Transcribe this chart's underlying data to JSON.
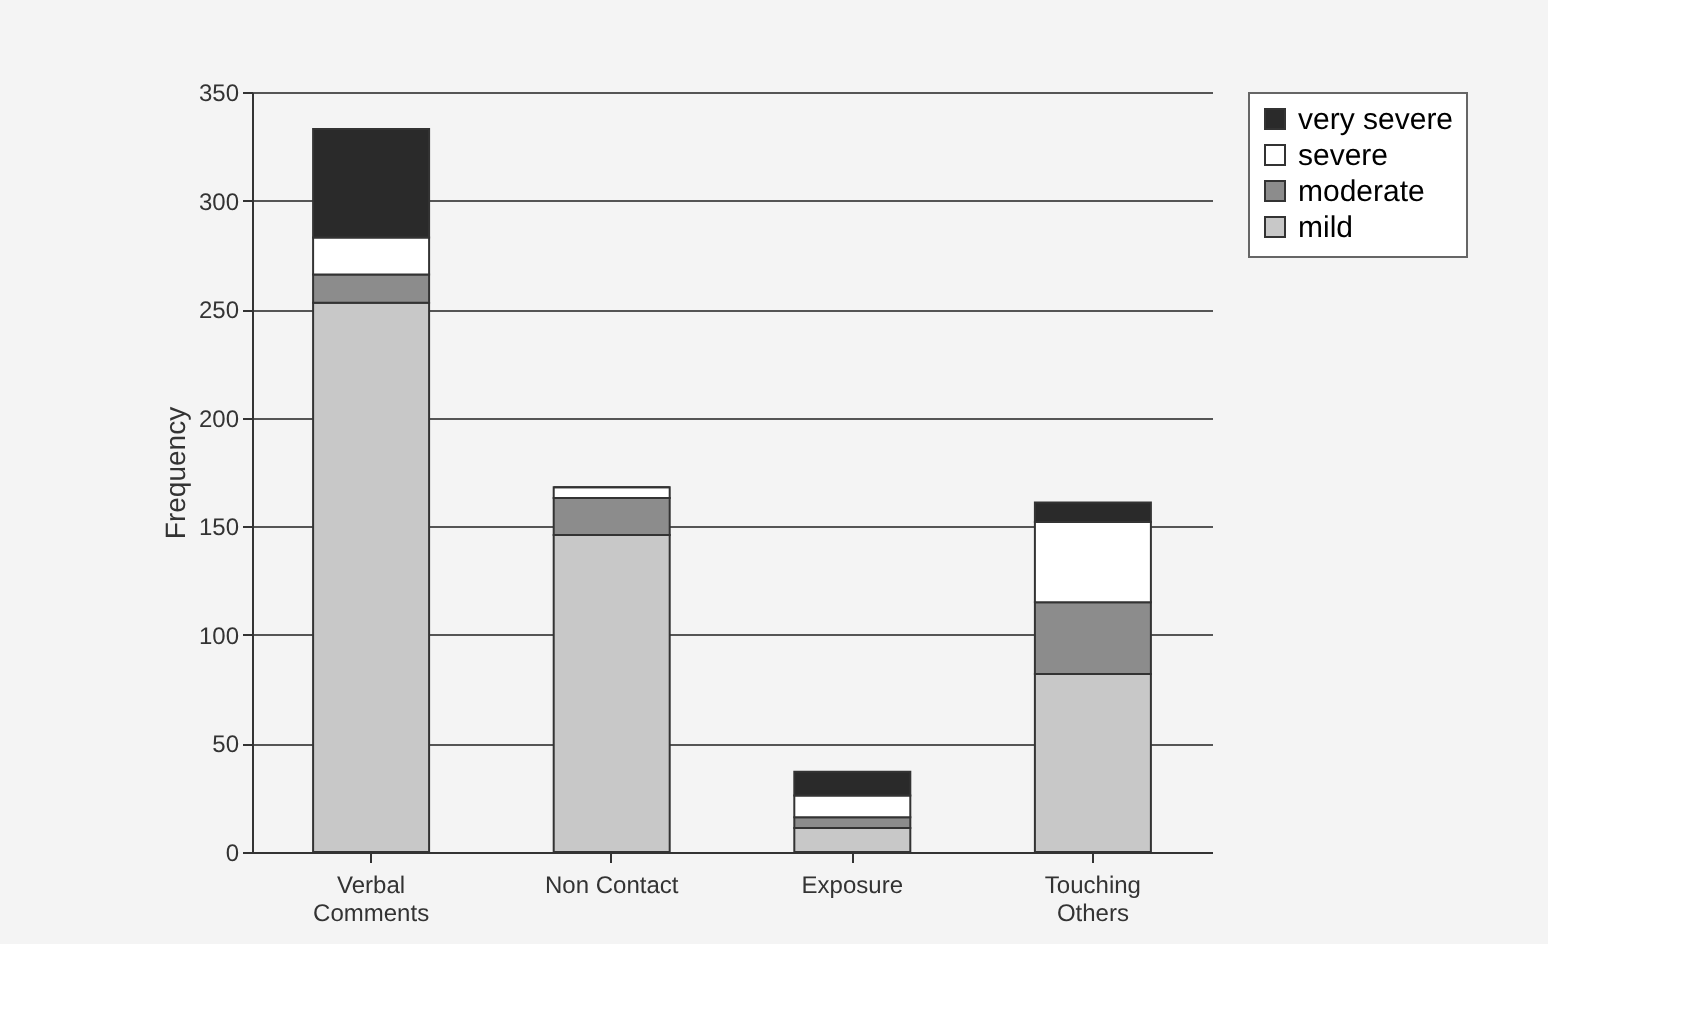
{
  "chart_data": {
    "type": "bar",
    "stacked": true,
    "ylabel": "Frequency",
    "categories": [
      "Verbal\nComments",
      "Non Contact",
      "Exposure",
      "Touching\nOthers"
    ],
    "series": [
      {
        "name": "mild",
        "color": "#c8c8c8",
        "values": [
          253,
          146,
          11,
          82
        ]
      },
      {
        "name": "moderate",
        "color": "#8c8c8c",
        "values": [
          13,
          17,
          5,
          33
        ]
      },
      {
        "name": "severe",
        "color": "#ffffff",
        "values": [
          17,
          5,
          10,
          37
        ]
      },
      {
        "name": "very severe",
        "color": "#2a2a2a",
        "values": [
          50,
          0,
          11,
          9
        ]
      }
    ],
    "ylim": [
      0,
      350
    ],
    "yticks": [
      0,
      50,
      100,
      150,
      200,
      250,
      300,
      350
    ],
    "grid": "y",
    "legend": "right"
  }
}
